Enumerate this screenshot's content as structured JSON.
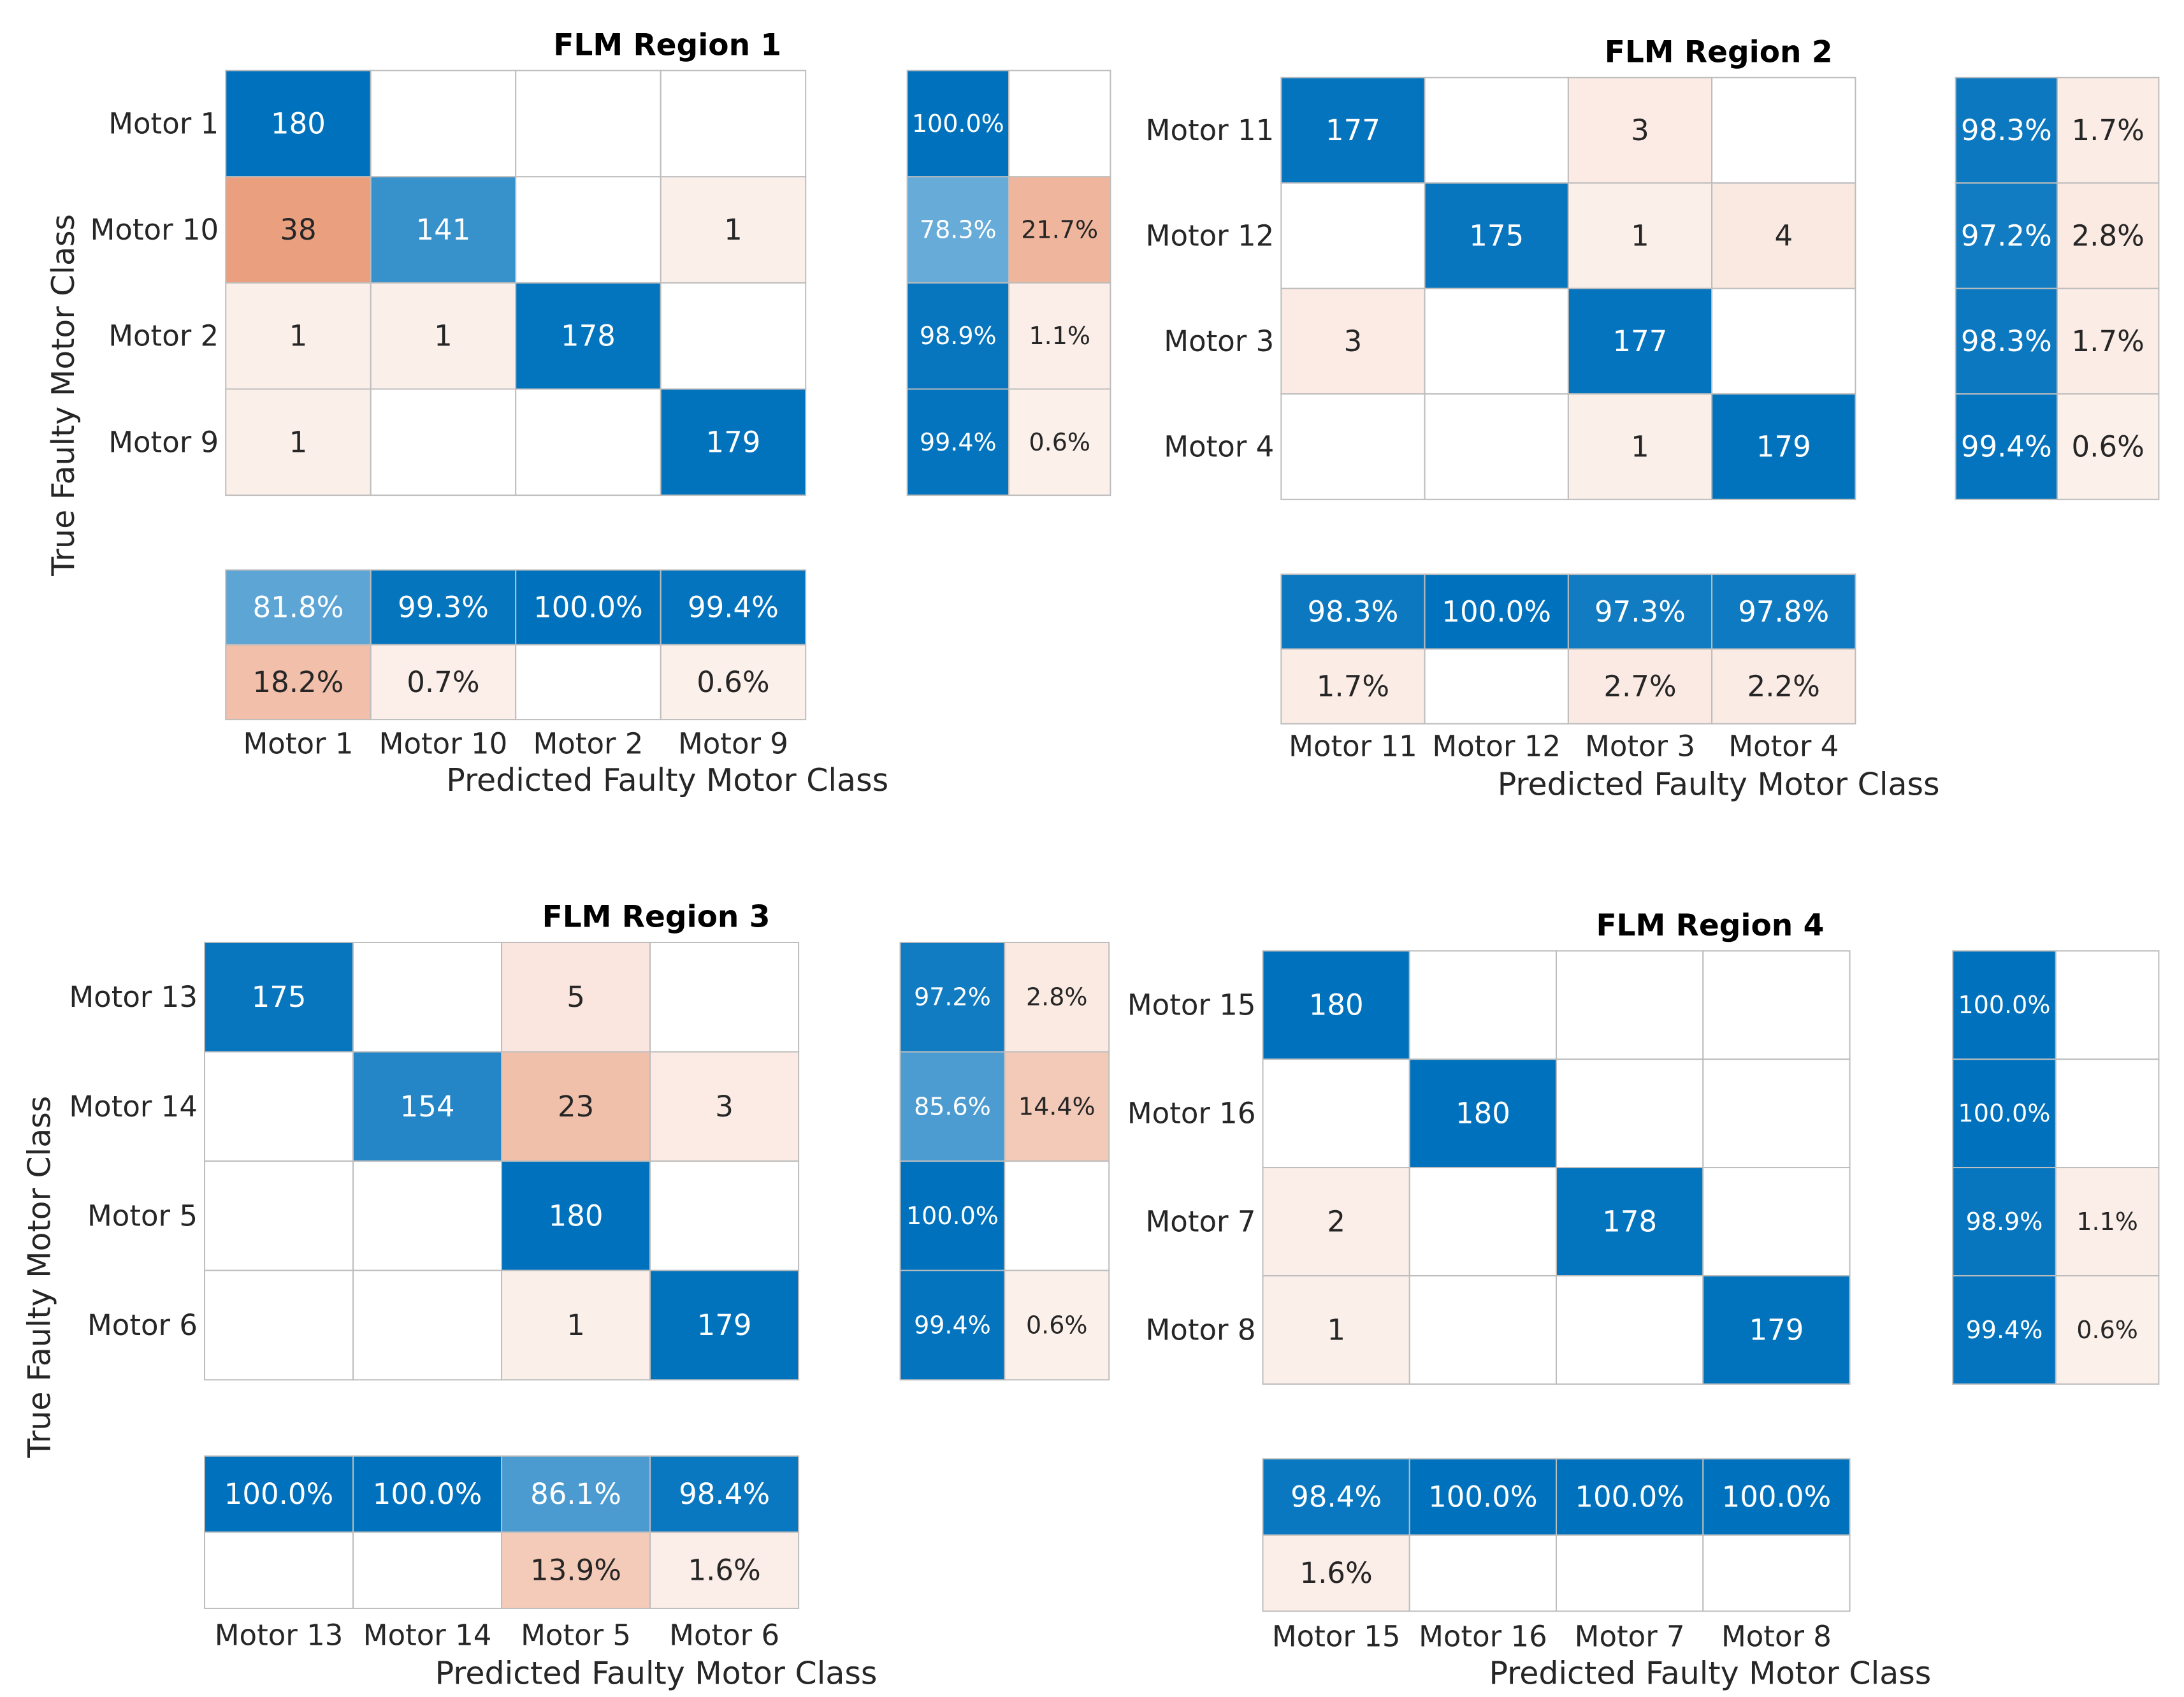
{
  "chart_data": [
    {
      "type": "heatmap",
      "title": "FLM Region 1",
      "xlabel": "Predicted Faulty Motor Class",
      "ylabel": "True Faulty Motor Class",
      "classes": [
        "Motor 1",
        "Motor 10",
        "Motor 2",
        "Motor 9"
      ],
      "matrix": [
        [
          180,
          null,
          null,
          null
        ],
        [
          38,
          141,
          null,
          1
        ],
        [
          1,
          1,
          178,
          null
        ],
        [
          1,
          null,
          null,
          179
        ]
      ],
      "row_summary": [
        [
          "100.0%",
          ""
        ],
        [
          "78.3%",
          "21.7%"
        ],
        [
          "98.9%",
          "1.1%"
        ],
        [
          "99.4%",
          "0.6%"
        ]
      ],
      "col_summary": [
        [
          "81.8%",
          "18.2%"
        ],
        [
          "99.3%",
          "0.7%"
        ],
        [
          "100.0%",
          ""
        ],
        [
          "99.4%",
          "0.6%"
        ]
      ]
    },
    {
      "type": "heatmap",
      "title": "FLM Region 2",
      "xlabel": "Predicted Faulty Motor Class",
      "ylabel": "",
      "classes": [
        "Motor 11",
        "Motor 12",
        "Motor 3",
        "Motor 4"
      ],
      "matrix": [
        [
          177,
          null,
          3,
          null
        ],
        [
          null,
          175,
          1,
          4
        ],
        [
          3,
          null,
          177,
          null
        ],
        [
          null,
          null,
          1,
          179
        ]
      ],
      "row_summary": [
        [
          "98.3%",
          "1.7%"
        ],
        [
          "97.2%",
          "2.8%"
        ],
        [
          "98.3%",
          "1.7%"
        ],
        [
          "99.4%",
          "0.6%"
        ]
      ],
      "col_summary": [
        [
          "98.3%",
          "1.7%"
        ],
        [
          "100.0%",
          ""
        ],
        [
          "97.3%",
          "2.7%"
        ],
        [
          "97.8%",
          "2.2%"
        ]
      ]
    },
    {
      "type": "heatmap",
      "title": "FLM Region 3",
      "xlabel": "Predicted Faulty Motor Class",
      "ylabel": "True Faulty Motor Class",
      "classes": [
        "Motor 13",
        "Motor 14",
        "Motor 5",
        "Motor 6"
      ],
      "matrix": [
        [
          175,
          null,
          5,
          null
        ],
        [
          null,
          154,
          23,
          3
        ],
        [
          null,
          null,
          180,
          null
        ],
        [
          null,
          null,
          1,
          179
        ]
      ],
      "row_summary": [
        [
          "97.2%",
          "2.8%"
        ],
        [
          "85.6%",
          "14.4%"
        ],
        [
          "100.0%",
          ""
        ],
        [
          "99.4%",
          "0.6%"
        ]
      ],
      "col_summary": [
        [
          "100.0%",
          ""
        ],
        [
          "100.0%",
          ""
        ],
        [
          "86.1%",
          "13.9%"
        ],
        [
          "98.4%",
          "1.6%"
        ]
      ]
    },
    {
      "type": "heatmap",
      "title": "FLM Region 4",
      "xlabel": "Predicted Faulty Motor Class",
      "ylabel": "",
      "classes": [
        "Motor 15",
        "Motor 16",
        "Motor 7",
        "Motor 8"
      ],
      "matrix": [
        [
          180,
          null,
          null,
          null
        ],
        [
          null,
          180,
          null,
          null
        ],
        [
          2,
          null,
          178,
          null
        ],
        [
          1,
          null,
          null,
          179
        ]
      ],
      "row_summary": [
        [
          "100.0%",
          ""
        ],
        [
          "100.0%",
          ""
        ],
        [
          "98.9%",
          "1.1%"
        ],
        [
          "99.4%",
          "0.6%"
        ]
      ],
      "col_summary": [
        [
          "98.4%",
          "1.6%"
        ],
        [
          "100.0%",
          ""
        ],
        [
          "100.0%",
          ""
        ],
        [
          "100.0%",
          ""
        ]
      ]
    }
  ],
  "colors": {
    "correct": "#0072bd",
    "error": "#d95319",
    "grid": "#bdbdbd",
    "text_dark": "#262626",
    "text_light": "#ffffff"
  }
}
